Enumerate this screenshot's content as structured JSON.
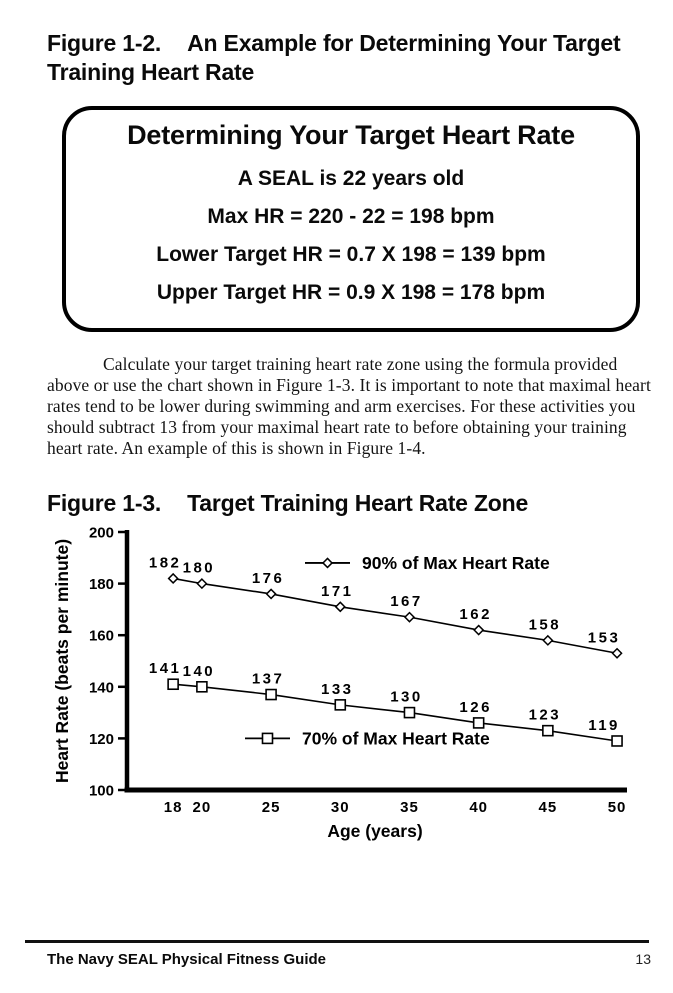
{
  "page": {
    "figure12": {
      "label": "Figure 1-2.",
      "title": "An Example for Determining Your Target Training Heart Rate"
    },
    "box": {
      "title": "Determining Your Target Heart Rate",
      "lines": [
        "A SEAL is 22 years old",
        "Max HR = 220 - 22 = 198 bpm",
        "Lower Target HR = 0.7 X 198 = 139 bpm",
        "Upper Target HR = 0.9 X 198 = 178 bpm"
      ]
    },
    "paragraph": "Calculate your target training heart rate zone using the formula provided above or use the chart shown in Figure 1-3. It is important to note that maximal heart rates tend to be lower during swimming and arm exercises. For these activities you should subtract 13 from your maximal heart rate to before obtaining your training heart rate. An example of this is shown in Figure 1-4.",
    "figure13": {
      "label": "Figure 1-3.",
      "title": "Target Training Heart Rate Zone"
    },
    "footer": {
      "left": "The Navy SEAL Physical Fitness Guide",
      "page_number": "13"
    }
  },
  "chart_data": {
    "type": "line",
    "title": "Target Training Heart Rate Zone",
    "xlabel": "Age (years)",
    "ylabel": "Heart Rate (beats per minute)",
    "categories": [
      18,
      20,
      25,
      30,
      35,
      40,
      45,
      50
    ],
    "series": [
      {
        "name": "90% of Max Heart Rate",
        "marker": "diamond",
        "values": [
          182,
          180,
          176,
          171,
          167,
          162,
          158,
          153
        ]
      },
      {
        "name": "70% of Max Heart Rate",
        "marker": "square",
        "values": [
          141,
          140,
          137,
          133,
          130,
          126,
          123,
          119
        ]
      }
    ],
    "ylim": [
      100,
      200
    ],
    "yticks": [
      100,
      120,
      140,
      160,
      180,
      200
    ],
    "grid": false,
    "legend_position": "inside",
    "line_color": "#000000",
    "marker_fill": "#ffffff"
  }
}
